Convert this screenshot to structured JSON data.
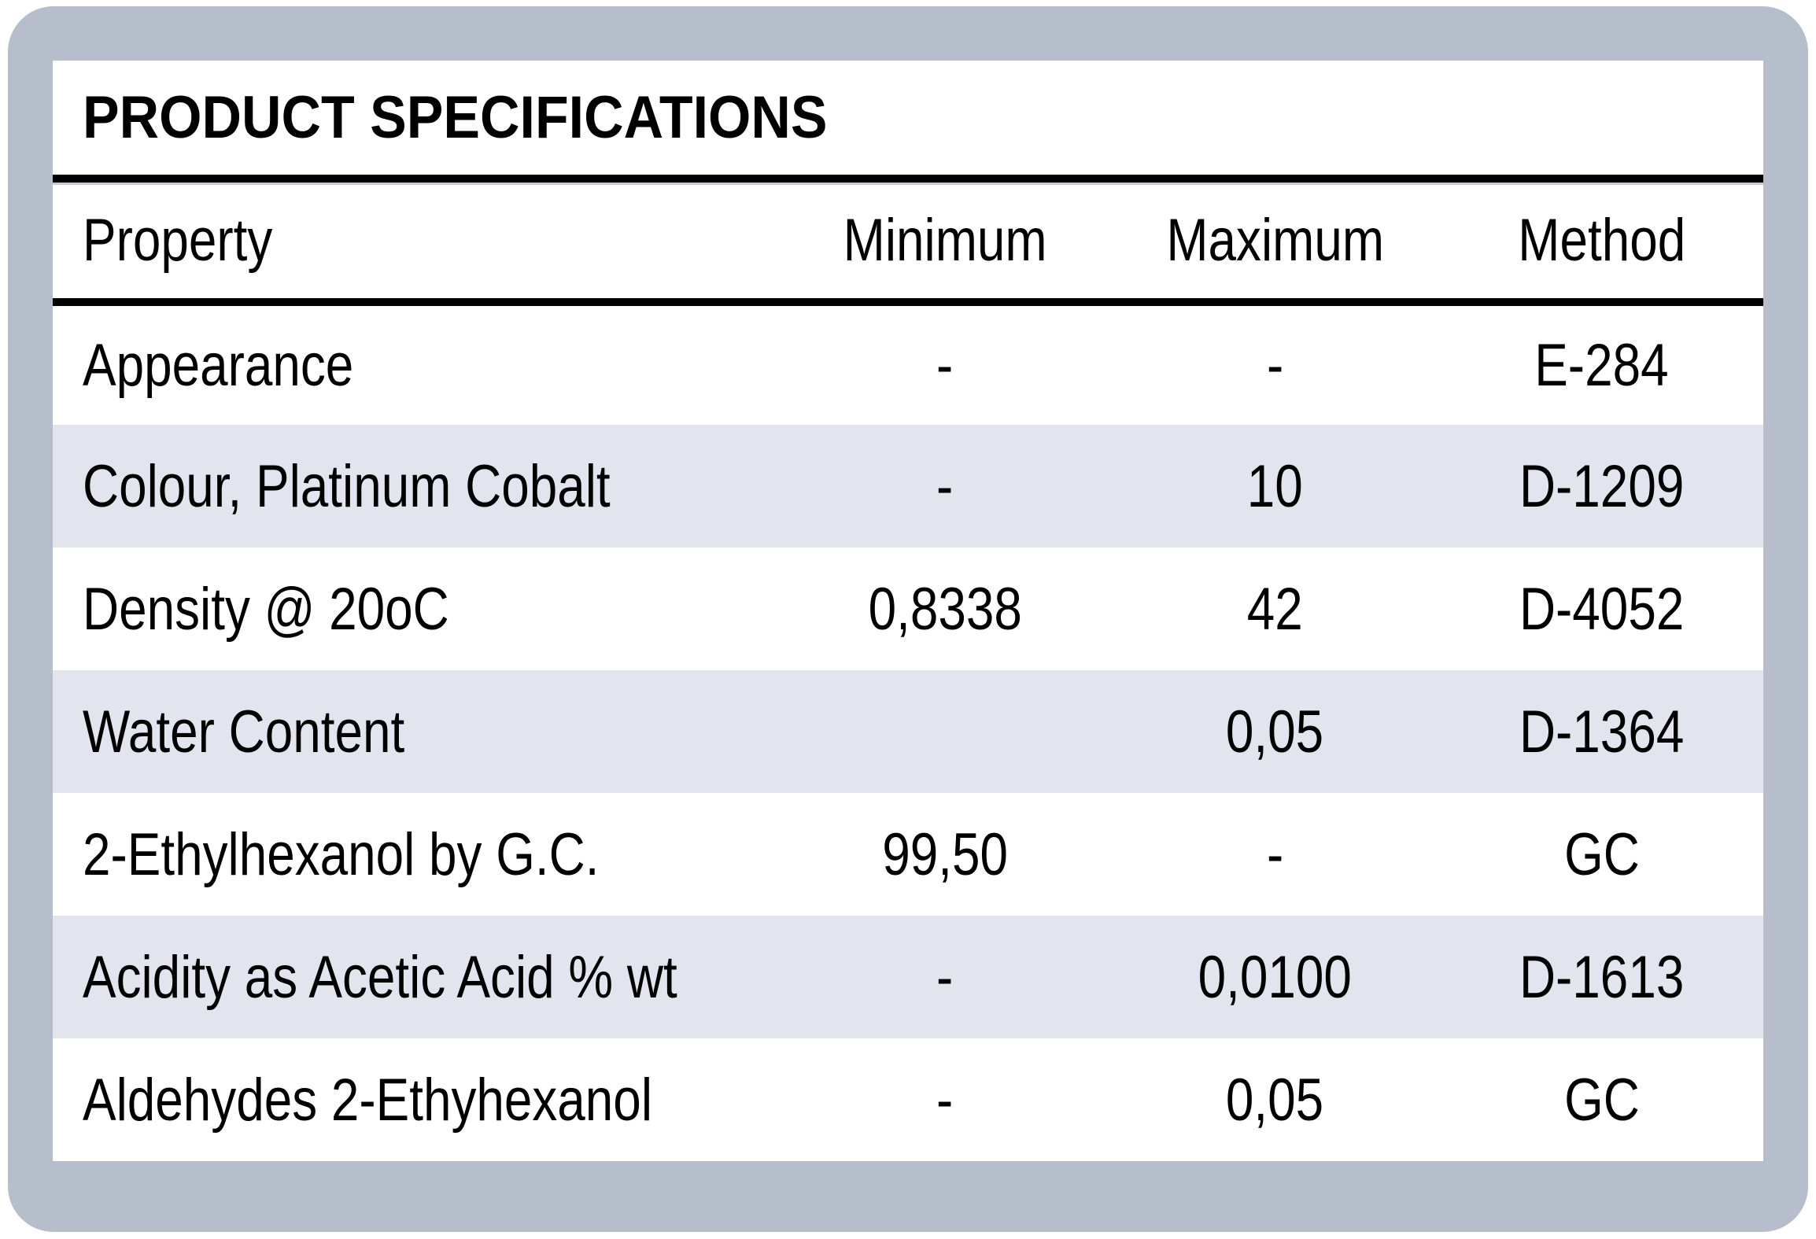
{
  "table": {
    "title": "PRODUCT SPECIFICATIONS",
    "columns": [
      "Property",
      "Minimum",
      "Maximum",
      "Method"
    ],
    "rows": [
      {
        "property": "Appearance",
        "minimum": "-",
        "maximum": "-",
        "method": "E-284"
      },
      {
        "property": "Colour, Platinum Cobalt",
        "minimum": "-",
        "maximum": "10",
        "method": "D-1209"
      },
      {
        "property": "Density @ 20oC",
        "minimum": "0,8338",
        "maximum": "42",
        "method": "D-4052"
      },
      {
        "property": "Water Content",
        "minimum": "",
        "maximum": "0,05",
        "method": "D-1364"
      },
      {
        "property": "2-Ethylhexanol by G.C.",
        "minimum": "99,50",
        "maximum": "-",
        "method": "GC"
      },
      {
        "property": "Acidity as Acetic Acid % wt",
        "minimum": "-",
        "maximum": "0,0100",
        "method": "D-1613"
      },
      {
        "property": "Aldehydes 2-Ethyhexanol",
        "minimum": "-",
        "maximum": "0,05",
        "method": "GC"
      }
    ],
    "colors": {
      "frame_background": "#b7becb",
      "card_background": "#ffffff",
      "alternate_row_background": "#e2e5ee",
      "rule_color": "#000000",
      "text_color": "#000000"
    }
  }
}
